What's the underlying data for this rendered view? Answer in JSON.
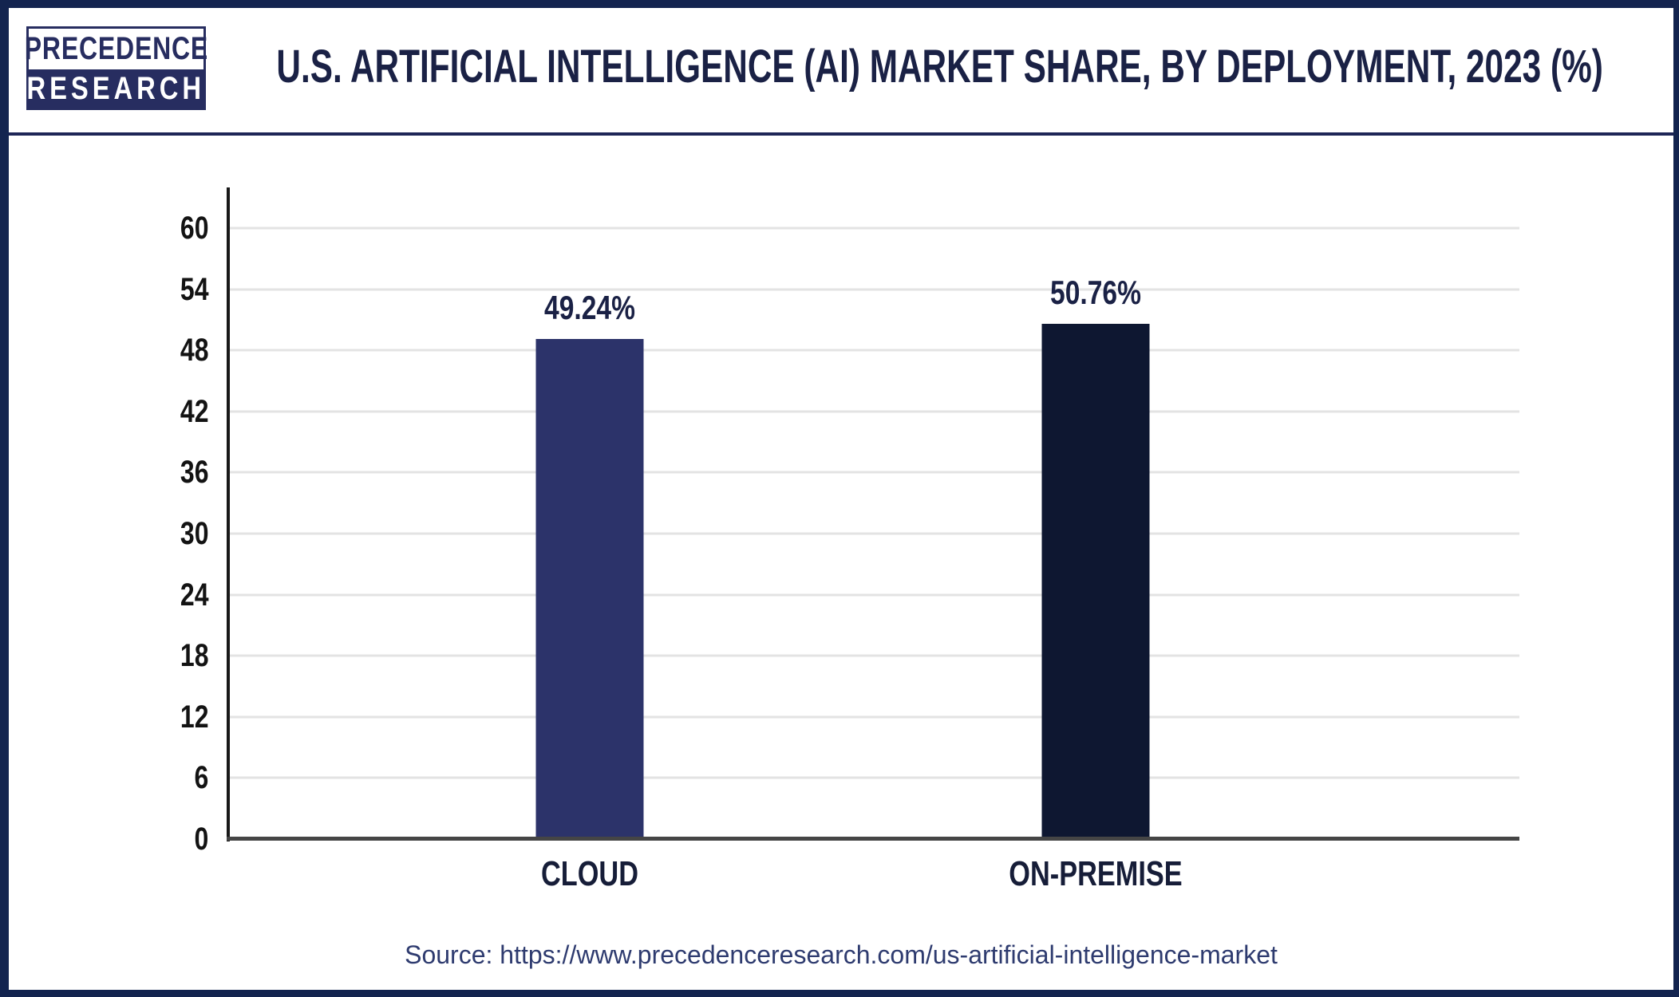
{
  "brand": {
    "line1": "PRECEDENCE",
    "line2": "RESEARCH"
  },
  "header": {
    "title": "U.S. ARTIFICIAL INTELLIGENCE (AI) MARKET SHARE, BY DEPLOYMENT, 2023 (%)"
  },
  "chart_data": {
    "type": "bar",
    "title": "U.S. Artificial Intelligence (AI) Market Share, By Deployment, 2023 (%)",
    "categories": [
      "CLOUD",
      "ON-PREMISE"
    ],
    "values": [
      49.24,
      50.76
    ],
    "value_labels": [
      "49.24%",
      "50.76%"
    ],
    "xlabel": "",
    "ylabel": "",
    "ylim": [
      0,
      60
    ],
    "yticks": [
      0,
      6,
      12,
      18,
      24,
      30,
      36,
      42,
      48,
      54,
      60
    ],
    "grid": true,
    "legend": false,
    "bar_colors": [
      "#2c336a",
      "#0e1731"
    ]
  },
  "source": {
    "label": "Source:",
    "url": "https://www.precedenceresearch.com/us-artificial-intelligence-market"
  },
  "colors": {
    "frame_border": "#13244f",
    "logo_navy": "#272d60",
    "title_text": "#1a2145",
    "tick_text": "#131313",
    "category_text": "#161d38",
    "value_text": "#1a2145",
    "gridline": "#e3e3e3",
    "axis_line": "#191919",
    "baseline": "#454545",
    "source_text": "#2e3b6f",
    "cloud_bar": "#2c336a",
    "on_premise_bar": "#0e1731"
  }
}
